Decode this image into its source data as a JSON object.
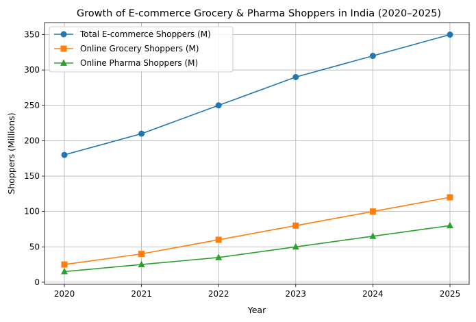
{
  "chart_data": {
    "type": "line",
    "title": "Growth of E-commerce Grocery & Pharma Shoppers in India (2020–2025)",
    "xlabel": "Year",
    "ylabel": "Shoppers (Millions)",
    "x": [
      "2020",
      "2021",
      "2022",
      "2023",
      "2024",
      "2025"
    ],
    "yticks": [
      0,
      50,
      100,
      150,
      200,
      250,
      300,
      350
    ],
    "ylim": [
      -3,
      367
    ],
    "grid": true,
    "legend_position": "top-left",
    "series": [
      {
        "name": "Total E-commerce Shoppers (M)",
        "values": [
          180,
          210,
          250,
          290,
          320,
          350
        ],
        "color": "#1f77b4",
        "marker": "circle"
      },
      {
        "name": "Online Grocery Shoppers (M)",
        "values": [
          25,
          40,
          60,
          80,
          100,
          120
        ],
        "color": "#ff7f0e",
        "marker": "square"
      },
      {
        "name": "Online Pharma Shoppers (M)",
        "values": [
          15,
          25,
          35,
          50,
          65,
          80
        ],
        "color": "#2ca02c",
        "marker": "triangle"
      }
    ]
  }
}
